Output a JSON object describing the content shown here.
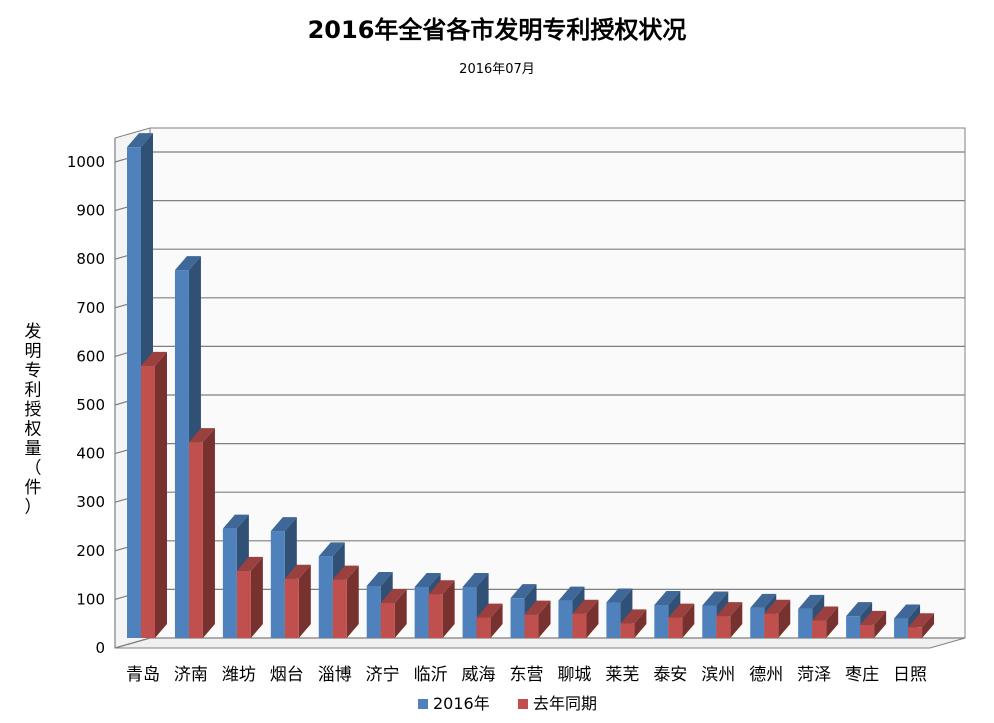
{
  "chart_data": {
    "type": "bar",
    "title": "2016年全省各市发明专利授权状况",
    "subtitle": "2016年07月",
    "ylabel": "发明专利授权量（件）",
    "ylabel_chars": [
      "发",
      "明",
      "专",
      "利",
      "授",
      "权",
      "量",
      "（",
      "件",
      "）"
    ],
    "xlabel": "",
    "ylim": [
      0,
      1000
    ],
    "yticks": [
      0,
      100,
      200,
      300,
      400,
      500,
      600,
      700,
      800,
      900,
      1000
    ],
    "grid": true,
    "legend_position": "bottom",
    "categories": [
      "青岛",
      "济南",
      "潍坊",
      "烟台",
      "淄博",
      "济宁",
      "临沂",
      "威海",
      "东营",
      "聊城",
      "莱芜",
      "泰安",
      "滨州",
      "德州",
      "菏泽",
      "枣庄",
      "日照"
    ],
    "series": [
      {
        "name": "2016年",
        "color": "#4F81BD",
        "values": [
          1010,
          757,
          225,
          220,
          168,
          107,
          105,
          105,
          82,
          77,
          73,
          68,
          67,
          62,
          60,
          45,
          40
        ]
      },
      {
        "name": "去年同期",
        "color": "#C0504D",
        "values": [
          560,
          403,
          138,
          122,
          120,
          72,
          90,
          42,
          48,
          50,
          30,
          42,
          45,
          50,
          36,
          27,
          22
        ]
      }
    ]
  }
}
